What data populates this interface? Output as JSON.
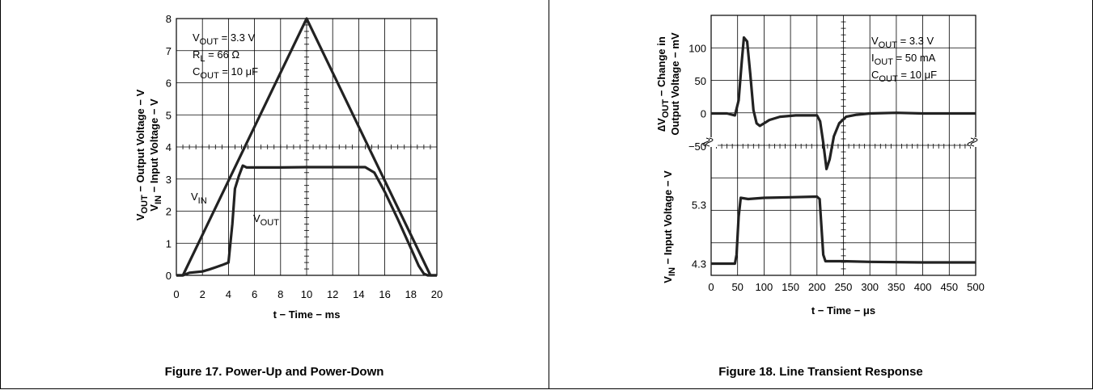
{
  "chart_data": [
    {
      "type": "line",
      "figure_caption": "Figure 17. Power-Up and Power-Down",
      "xlabel": "t − Time − ms",
      "ylabel_line1": "V",
      "ylabel_line1_sub": "OUT",
      "ylabel_line1_tail": " − Output Voltage − V",
      "ylabel_line2": "V",
      "ylabel_line2_sub": "IN",
      "ylabel_line2_tail": " − Input Voltage − V",
      "xlim": [
        0,
        20
      ],
      "ylim": [
        0,
        8
      ],
      "xticks": [
        "0",
        "2",
        "4",
        "6",
        "8",
        "10",
        "12",
        "14",
        "16",
        "18",
        "20"
      ],
      "yticks": [
        "0",
        "1",
        "2",
        "3",
        "4",
        "5",
        "6",
        "7",
        "8"
      ],
      "grid": true,
      "annotations": [
        {
          "main": "V",
          "sub": "OUT",
          "tail": " = 3.3 V"
        },
        {
          "main": "R",
          "sub": "L",
          "tail": " = 66 Ω"
        },
        {
          "main": "C",
          "sub": "OUT",
          "tail": " = 10 μF"
        }
      ],
      "series": [
        {
          "name_main": "V",
          "name_sub": "IN",
          "x": [
            0,
            0.5,
            10,
            19.5,
            20
          ],
          "y": [
            0,
            0,
            8,
            0,
            0
          ]
        },
        {
          "name_main": "V",
          "name_sub": "OUT",
          "x": [
            0,
            0.5,
            1,
            1.5,
            2,
            2.5,
            3,
            3.5,
            4.0,
            4.3,
            4.5,
            4.8,
            5.1,
            5.4,
            6,
            8,
            10,
            12,
            14.5,
            15.2,
            16,
            17,
            18,
            18.6,
            19,
            19.3,
            19.6,
            20
          ],
          "y": [
            0,
            0,
            0.08,
            0.1,
            0.12,
            0.18,
            0.25,
            0.32,
            0.4,
            1.6,
            2.7,
            3.1,
            3.42,
            3.36,
            3.36,
            3.36,
            3.37,
            3.37,
            3.37,
            3.2,
            2.6,
            1.75,
            0.85,
            0.3,
            0.05,
            0,
            0,
            0
          ]
        }
      ]
    },
    {
      "type": "line",
      "figure_caption": "Figure 18. Line Transient Response",
      "xlabel": "t − Time − μs",
      "top_ylabel_line1_a": "∆V",
      "top_ylabel_line1_sub": "OUT",
      "top_ylabel_line1_tail": " − Change in",
      "top_ylabel_line2": "Output Voltage − mV",
      "bottom_ylabel_main": "V",
      "bottom_ylabel_sub": "IN",
      "bottom_ylabel_tail": " − Input Voltage − V",
      "xlim": [
        0,
        500
      ],
      "top_ylim": [
        -50,
        150
      ],
      "bottom_ylim": [
        4.1,
        6.3
      ],
      "xticks": [
        "0",
        "50",
        "100",
        "150",
        "200",
        "250",
        "300",
        "350",
        "400",
        "450",
        "500"
      ],
      "top_yticks": [
        "−50",
        "0",
        "50",
        "100"
      ],
      "bottom_yticks": [
        "4.3",
        "5.3"
      ],
      "grid": true,
      "annotations": [
        {
          "main": "V",
          "sub": "OUT",
          "tail": " = 3.3 V"
        },
        {
          "main": "I",
          "sub": "OUT",
          "tail": " = 50 mA"
        },
        {
          "main": "C",
          "sub": "OUT",
          "tail": " = 10 μF"
        }
      ],
      "series": [
        {
          "name": "∆VOUT",
          "x": [
            0,
            30,
            45,
            52,
            58,
            62,
            68,
            74,
            80,
            86,
            92,
            100,
            110,
            130,
            160,
            200,
            206,
            212,
            218,
            224,
            232,
            242,
            255,
            275,
            300,
            350,
            400,
            450,
            500
          ],
          "y": [
            0,
            0,
            -3,
            20,
            80,
            116,
            110,
            60,
            5,
            -15,
            -19,
            -15,
            -10,
            -5,
            -3,
            -3,
            -12,
            -45,
            -85,
            -70,
            -35,
            -15,
            -5,
            -2,
            0,
            1,
            0,
            0,
            0
          ]
        },
        {
          "name": "VIN",
          "x": [
            0,
            45,
            48,
            52,
            56,
            70,
            100,
            150,
            200,
            205,
            208,
            212,
            216,
            220,
            250,
            300,
            400,
            500
          ],
          "y": [
            4.3,
            4.3,
            4.45,
            5.1,
            5.42,
            5.4,
            5.42,
            5.43,
            5.44,
            5.4,
            5.0,
            4.45,
            4.34,
            4.34,
            4.34,
            4.33,
            4.32,
            4.32
          ]
        }
      ]
    }
  ]
}
